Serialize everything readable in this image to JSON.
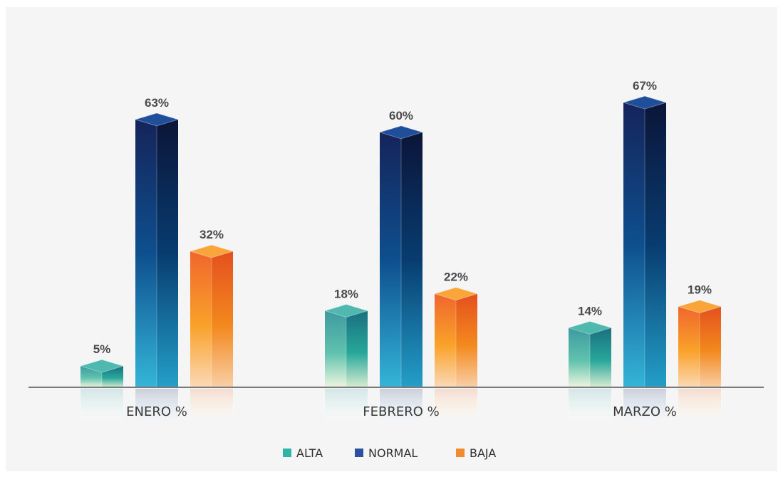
{
  "chart_data": {
    "type": "bar",
    "categories": [
      "ENERO %",
      "FEBRERO %",
      "MARZO %"
    ],
    "series": [
      {
        "name": "ALTA",
        "values": [
          5,
          18,
          14
        ],
        "labels": [
          "5%",
          "18%",
          "14%"
        ],
        "color": "#2fb5a8"
      },
      {
        "name": "NORMAL",
        "values": [
          63,
          60,
          67
        ],
        "labels": [
          "63%",
          "60%",
          "67%"
        ],
        "color": "#2f4fa0"
      },
      {
        "name": "BAJA",
        "values": [
          32,
          22,
          19
        ],
        "labels": [
          "32%",
          "22%",
          "19%"
        ],
        "color": "#f28a2e"
      }
    ],
    "ylim": [
      0,
      70
    ],
    "grid": false,
    "legend_position": "bottom-center",
    "style": "3d-prism"
  }
}
